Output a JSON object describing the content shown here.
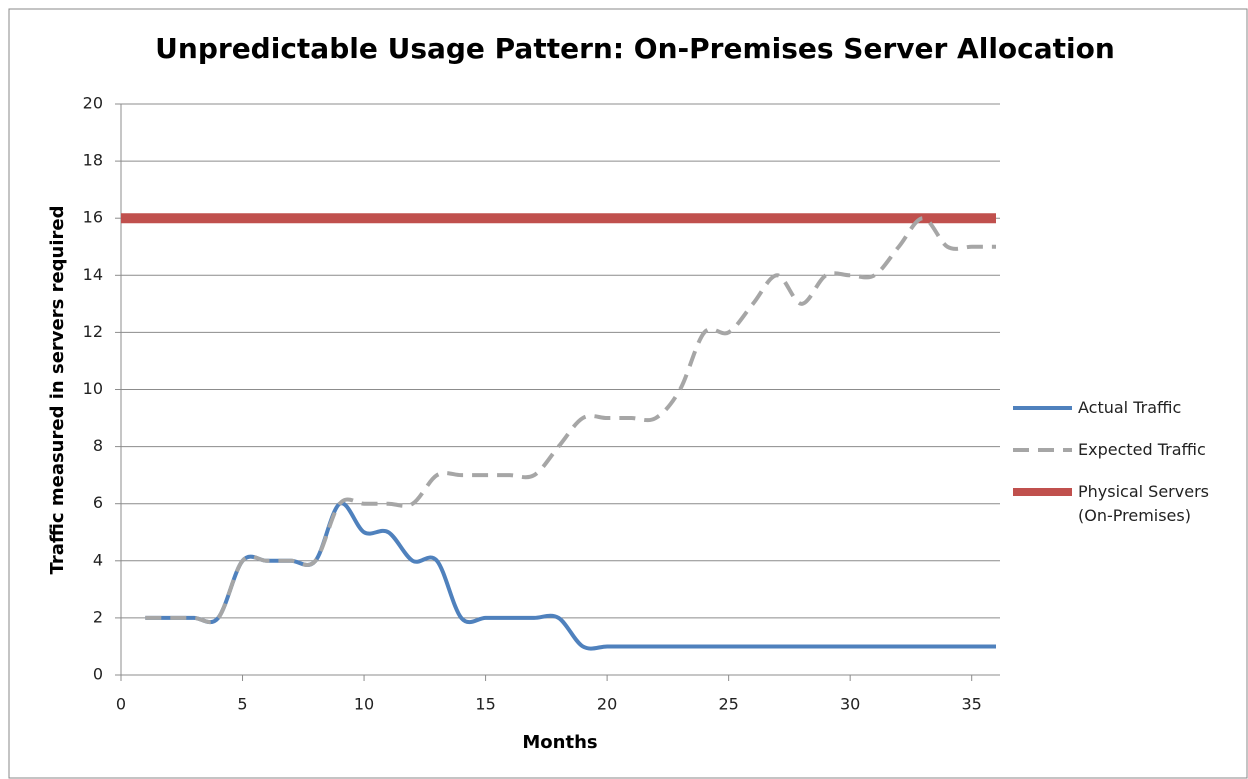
{
  "chart_data": {
    "type": "line",
    "title": "Unpredictable Usage Pattern: On-Premises Server Allocation",
    "xlabel": "Months",
    "ylabel": "Traffic measured in servers required",
    "xlim": [
      0,
      36
    ],
    "xticks": [
      0,
      5,
      10,
      15,
      20,
      25,
      30,
      35
    ],
    "ylim": [
      0,
      20
    ],
    "yticks": [
      0,
      2,
      4,
      6,
      8,
      10,
      12,
      14,
      16,
      18,
      20
    ],
    "grid": true,
    "legend": "right",
    "series": [
      {
        "name": "Actual Traffic",
        "color": "#4f81bd",
        "style": "solid",
        "x": [
          1,
          2,
          3,
          4,
          5,
          6,
          7,
          8,
          9,
          10,
          11,
          12,
          13,
          14,
          15,
          16,
          17,
          18,
          19,
          20,
          21,
          22,
          23,
          24,
          25,
          26,
          27,
          28,
          29,
          30,
          31,
          32,
          33,
          34,
          35,
          36
        ],
        "values": [
          2,
          2,
          2,
          2,
          4,
          4,
          4,
          4,
          6,
          5,
          5,
          4,
          4,
          2,
          2,
          2,
          2,
          2,
          1,
          1,
          1,
          1,
          1,
          1,
          1,
          1,
          1,
          1,
          1,
          1,
          1,
          1,
          1,
          1,
          1,
          1
        ]
      },
      {
        "name": "Expected Traffic",
        "color": "#a6a6a6",
        "style": "dashed",
        "x": [
          1,
          2,
          3,
          4,
          5,
          6,
          7,
          8,
          9,
          10,
          11,
          12,
          13,
          14,
          15,
          16,
          17,
          18,
          19,
          20,
          21,
          22,
          23,
          24,
          25,
          26,
          27,
          28,
          29,
          30,
          31,
          32,
          33,
          34,
          35,
          36
        ],
        "values": [
          2,
          2,
          2,
          2,
          4,
          4,
          4,
          4,
          6,
          6,
          6,
          6,
          7,
          7,
          7,
          7,
          7,
          8,
          9,
          9,
          9,
          9,
          10,
          12,
          12,
          13,
          14,
          13,
          14,
          14,
          14,
          15,
          16,
          15,
          15,
          15
        ]
      },
      {
        "name": "Physical Servers (On-Premises)",
        "color": "#c0504d",
        "style": "thick",
        "x": [
          0,
          36
        ],
        "values": [
          16,
          16
        ]
      }
    ]
  }
}
